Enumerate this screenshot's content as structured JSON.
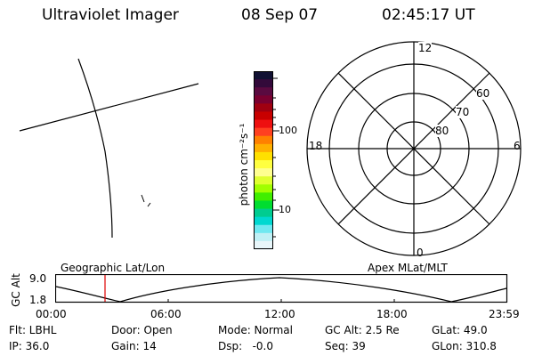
{
  "header": {
    "instrument": "Ultraviolet Imager",
    "date": "08 Sep 07",
    "time": "02:45:17 UT"
  },
  "colorbar": {
    "label": "photon cm⁻²s⁻¹",
    "tick_labels": [
      "100",
      "10"
    ],
    "colors": [
      "#111133",
      "#330a3a",
      "#5a0a40",
      "#7a0030",
      "#a00010",
      "#c80000",
      "#ee1010",
      "#ff4020",
      "#ff8000",
      "#ffb000",
      "#ffe000",
      "#ffff40",
      "#ffff90",
      "#e0ff30",
      "#a0ff00",
      "#40ee00",
      "#00dd30",
      "#00cc90",
      "#00d8d0",
      "#70e8f0",
      "#c0f0f5",
      "#e8f6fa"
    ]
  },
  "polar": {
    "mlt_labels": {
      "top": "12",
      "left": "18",
      "right": "6",
      "bottom": "0"
    },
    "lat_labels": [
      "60",
      "70",
      "80"
    ]
  },
  "timeline": {
    "left_label": "Geographic Lat/Lon",
    "right_label": "Apex MLat/MLT",
    "axis_title": "GC Alt",
    "y_ticks": [
      "9.0",
      "1.8"
    ],
    "x_ticks": [
      "00:00",
      "06:00",
      "12:00",
      "18:00",
      "23:59"
    ],
    "marker_color": "#dd0000"
  },
  "info": {
    "flt": "Flt: LBHL",
    "ip": "IP: 36.0",
    "door": "Door: Open",
    "gain": "Gain: 14",
    "mode": "Mode: Normal",
    "dsp": "Dsp:   -0.0",
    "gcalt": "GC Alt: 2.5 Re",
    "seq": "Seq: 39",
    "glat": "GLat: 49.0",
    "glon": "GLon: 310.8"
  }
}
